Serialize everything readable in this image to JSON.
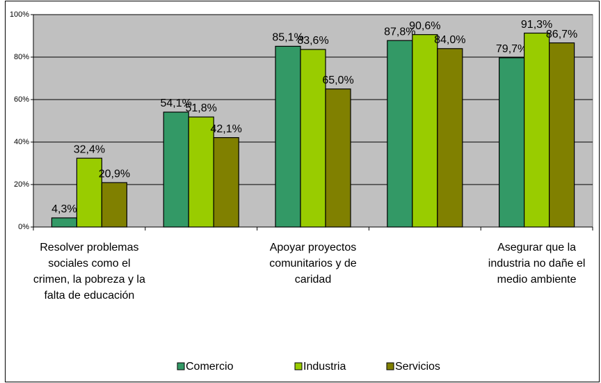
{
  "chart_data": {
    "type": "bar",
    "categories": [
      "Resolver problemas sociales como el crimen, la pobreza y la falta de educación",
      null,
      "Apoyar proyectos comunitarios y de caridad",
      null,
      "Asegurar que la industria no dañe el medio ambiente"
    ],
    "series": [
      {
        "name": "Comercio",
        "color": "#339966",
        "values": [
          4.3,
          54.1,
          85.1,
          87.8,
          79.7
        ],
        "value_labels": [
          "4,3%",
          "54,1%",
          "85,1%",
          "87,8%",
          "79,7%"
        ]
      },
      {
        "name": "Industria",
        "color": "#99cc00",
        "values": [
          32.4,
          51.8,
          83.6,
          90.6,
          91.3
        ],
        "value_labels": [
          "32,4%",
          "51,8%",
          "83,6%",
          "90,6%",
          "91,3%"
        ]
      },
      {
        "name": "Servicios",
        "color": "#808000",
        "values": [
          20.9,
          42.1,
          65.0,
          84.0,
          86.7
        ],
        "value_labels": [
          "20,9%",
          "42,1%",
          "65,0%",
          "84,0%",
          "86,7%"
        ]
      }
    ],
    "ylim": [
      0,
      100
    ],
    "yticks": [
      {
        "value": 0,
        "label": "0%"
      },
      {
        "value": 20,
        "label": "20%"
      },
      {
        "value": 40,
        "label": "40%"
      },
      {
        "value": 60,
        "label": "60%"
      },
      {
        "value": 80,
        "label": "80%"
      },
      {
        "value": 100,
        "label": "100%"
      }
    ],
    "grid": true,
    "legend": "bottom"
  }
}
